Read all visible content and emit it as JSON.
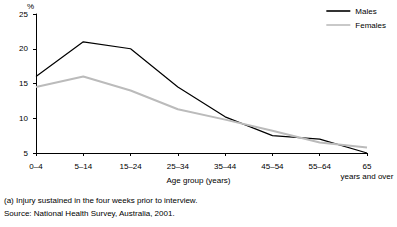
{
  "chart_data": {
    "type": "line",
    "y_label": "%",
    "x_label": "Age group (years)",
    "annotations": [
      "(a) Injury sustained in the four weeks prior to interview.",
      "Source: National Health Survey, Australia, 2001."
    ],
    "categories": [
      "0–4",
      "5–14",
      "15–24",
      "25–34",
      "35–44",
      "45–54",
      "55–64",
      "65 years and over"
    ],
    "series": [
      {
        "name": "Males",
        "color": "#000000",
        "values": [
          16,
          21,
          20,
          14.5,
          10.2,
          7.5,
          7,
          5
        ]
      },
      {
        "name": "Females",
        "color": "#bbbbbb",
        "values": [
          14.5,
          16,
          14,
          11.3,
          9.8,
          8.2,
          6.5,
          5.8
        ]
      }
    ],
    "ylim": [
      5,
      25
    ],
    "yticks": [
      5,
      10,
      15,
      20,
      25
    ],
    "grid": false,
    "legend": "upper right"
  }
}
